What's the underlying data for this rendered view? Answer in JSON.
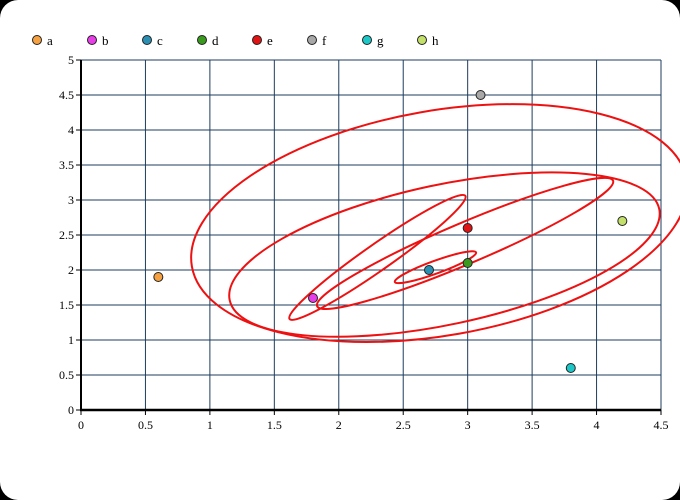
{
  "chart_data": {
    "type": "scatter",
    "title": "",
    "xlabel": "",
    "ylabel": "",
    "xlim": [
      0,
      4.5
    ],
    "ylim": [
      0,
      5
    ],
    "x_ticks": [
      "0",
      "0.5",
      "1",
      "1.5",
      "2",
      "2.5",
      "3",
      "3.5",
      "4",
      "4.5"
    ],
    "y_ticks": [
      "0",
      "0.5",
      "1",
      "1.5",
      "2",
      "2.5",
      "3",
      "3.5",
      "4",
      "4.5",
      "5"
    ],
    "grid": true,
    "legend_position": "top",
    "series": [
      {
        "name": "a",
        "color": "#f5a142",
        "x": 0.6,
        "y": 1.9
      },
      {
        "name": "b",
        "color": "#e83ee8",
        "x": 1.8,
        "y": 1.6
      },
      {
        "name": "c",
        "color": "#2b8fb3",
        "x": 2.7,
        "y": 2.0
      },
      {
        "name": "d",
        "color": "#3a9a1e",
        "x": 3.0,
        "y": 2.1
      },
      {
        "name": "e",
        "color": "#e01414",
        "x": 3.0,
        "y": 2.6
      },
      {
        "name": "f",
        "color": "#a8a8a8",
        "x": 3.1,
        "y": 4.5
      },
      {
        "name": "g",
        "color": "#1ec7c7",
        "x": 3.8,
        "y": 0.6
      },
      {
        "name": "h",
        "color": "#c3e06a",
        "x": 4.2,
        "y": 2.7
      }
    ],
    "ellipses": [
      {
        "cx": 2.78,
        "cy": 2.67,
        "rx": 1.55,
        "ry": 1.97,
        "angle": -80,
        "color": "#ee1111"
      },
      {
        "cx": 2.82,
        "cy": 2.22,
        "rx": 1.73,
        "ry": 0.95,
        "angle": 12,
        "color": "#ee1111"
      },
      {
        "cx": 2.98,
        "cy": 2.38,
        "rx": 1.32,
        "ry": 0.25,
        "angle": 23,
        "color": "#ee1111"
      },
      {
        "cx": 2.3,
        "cy": 2.18,
        "rx": 0.95,
        "ry": 0.14,
        "angle": 35,
        "color": "#ee1111"
      },
      {
        "cx": 2.75,
        "cy": 2.04,
        "rx": 0.35,
        "ry": 0.08,
        "angle": 20,
        "color": "#ee1111"
      }
    ]
  }
}
